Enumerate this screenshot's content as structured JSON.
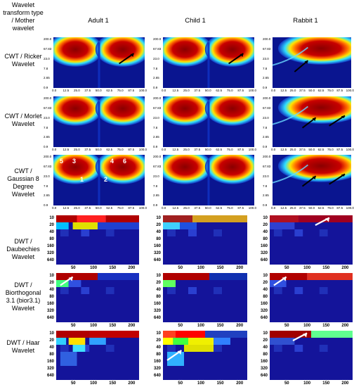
{
  "header": {
    "row_label_title": "Wavelet transform type / Mother wavelet",
    "columns": [
      "Adult 1",
      "Child 1",
      "Rabbit 1"
    ]
  },
  "rows": [
    {
      "label": "CWT / Ricker Wavelet",
      "kind": "cwt"
    },
    {
      "label": "CWT / Morlet Wavelet",
      "kind": "cwt"
    },
    {
      "label": "CWT / Gaussian 8 Degree Wavelet",
      "kind": "cwt"
    },
    {
      "label": "DWT / Daubechies Wavelet",
      "kind": "dwt"
    },
    {
      "label": "DWT / Biorthogonal 3.1 (bior3.1) Wavelet",
      "kind": "dwt"
    },
    {
      "label": "DWT / Haar Wavelet",
      "kind": "dwt"
    }
  ],
  "cwt_axes": {
    "y_ticks": [
      "200.0",
      "67.83",
      "23.0",
      "7.8",
      "2.65",
      "0.9"
    ],
    "x_ticks": [
      "0.0",
      "12.5",
      "25.0",
      "37.5",
      "50.0",
      "62.5",
      "75.0",
      "87.5",
      "100.0"
    ]
  },
  "dwt_axes": {
    "y_ticks": [
      "10",
      "20",
      "40",
      "80",
      "160",
      "320",
      "640"
    ],
    "x_ticks": [
      "50",
      "100",
      "150",
      "200"
    ]
  },
  "annotations": [
    "1",
    "2",
    "3",
    "4",
    "5",
    "6"
  ],
  "colors": {
    "background": "#0a0f8c",
    "high": "#a00000",
    "mid": "#ffe000",
    "low_mid": "#00c8ff"
  }
}
